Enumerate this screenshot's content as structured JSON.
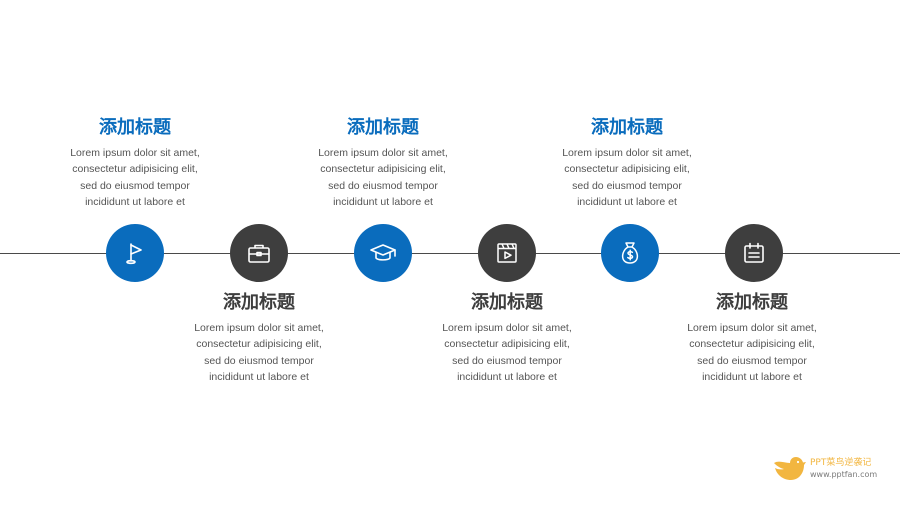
{
  "colors": {
    "accent": "#0a6cbd",
    "dark": "#3e3e3e",
    "watermark": "#f2b640"
  },
  "events": [
    {
      "title": "添加标题",
      "lines": [
        "Lorem ipsum dolor sit amet,",
        "consectetur adipisicing elit,",
        "sed do eiusmod tempor",
        "incididunt ut labore et"
      ],
      "icon": "flag-icon"
    },
    {
      "title": "添加标题",
      "lines": [
        "Lorem ipsum dolor sit amet,",
        "consectetur adipisicing elit,",
        "sed do eiusmod tempor",
        "incididunt ut labore et"
      ],
      "icon": "briefcase-icon"
    },
    {
      "title": "添加标题",
      "lines": [
        "Lorem ipsum dolor sit amet,",
        "consectetur adipisicing elit,",
        "sed do eiusmod tempor",
        "incididunt ut labore et"
      ],
      "icon": "graduation-cap-icon"
    },
    {
      "title": "添加标题",
      "lines": [
        "Lorem ipsum dolor sit amet,",
        "consectetur adipisicing elit,",
        "sed do eiusmod tempor",
        "incididunt ut labore et"
      ],
      "icon": "video-icon"
    },
    {
      "title": "添加标题",
      "lines": [
        "Lorem ipsum dolor sit amet,",
        "consectetur adipisicing elit,",
        "sed do eiusmod tempor",
        "incididunt ut labore et"
      ],
      "icon": "money-bag-icon"
    },
    {
      "title": "添加标题",
      "lines": [
        "Lorem ipsum dolor sit amet,",
        "consectetur adipisicing elit,",
        "sed do eiusmod tempor",
        "incididunt ut labore et"
      ],
      "icon": "calendar-icon"
    }
  ],
  "watermark": {
    "name": "PPT菜鸟逆袭记",
    "url": "www.pptfan.com",
    "icon": "bird-icon"
  }
}
